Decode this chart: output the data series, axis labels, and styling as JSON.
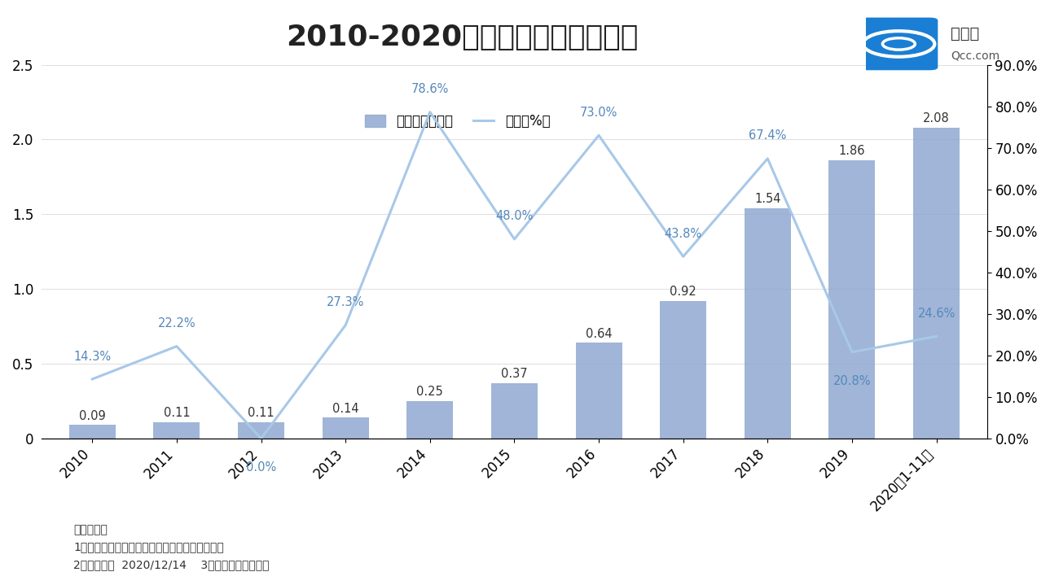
{
  "title": "2010-2020充电桩相关企业注册量",
  "categories": [
    "2010",
    "2011",
    "2012",
    "2013",
    "2014",
    "2015",
    "2016",
    "2017",
    "2018",
    "2019",
    "2020年1-11月"
  ],
  "bar_values": [
    0.09,
    0.11,
    0.11,
    0.14,
    0.25,
    0.37,
    0.64,
    0.92,
    1.54,
    1.86,
    2.08
  ],
  "line_values": [
    14.3,
    22.2,
    0.0,
    27.3,
    78.6,
    48.0,
    73.0,
    43.8,
    67.4,
    20.8,
    24.6
  ],
  "bar_color": "#8fa8d0",
  "line_color": "#a8c8e8",
  "bar_label_values": [
    "0.09",
    "0.11",
    "0.11",
    "0.14",
    "0.25",
    "0.37",
    "0.64",
    "0.92",
    "1.54",
    "1.86",
    "2.08"
  ],
  "line_label_values": [
    "14.3%",
    "22.2%",
    "0.0%",
    "27.3%",
    "78.6%",
    "48.0%",
    "73.0%",
    "43.8%",
    "67.4%",
    "20.8%",
    "24.6%"
  ],
  "ylim_left": [
    0,
    2.5
  ],
  "ylim_right": [
    0.0,
    90.0
  ],
  "yticks_left": [
    0,
    0.5,
    1.0,
    1.5,
    2.0,
    2.5
  ],
  "yticks_right": [
    0.0,
    10.0,
    20.0,
    30.0,
    40.0,
    50.0,
    60.0,
    70.0,
    80.0,
    90.0
  ],
  "legend_bar_label": "注册量（万家）",
  "legend_line_label": "同比（%）",
  "footnote_line1": "数据说明：",
  "footnote_line2": "1、仅统计关键词为「充电桩」的在业、存续企业",
  "footnote_line3": "2、统计时间  2020/12/14    3、数据来源：企查查",
  "background_color": "#ffffff",
  "title_fontsize": 26,
  "tick_fontsize": 12
}
